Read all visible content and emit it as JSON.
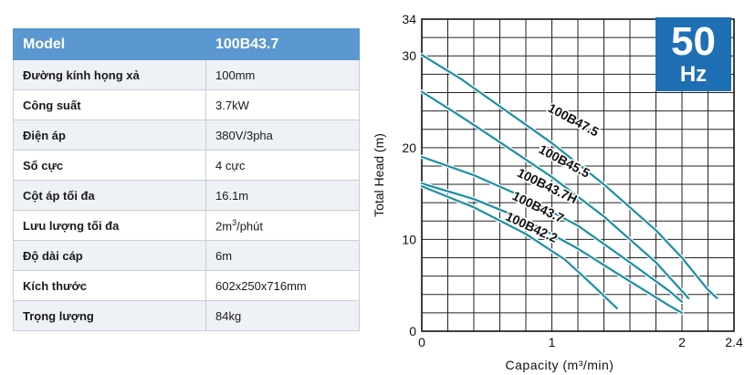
{
  "spec_table": {
    "header": {
      "label": "Model",
      "value": "100B43.7"
    },
    "rows": [
      {
        "label": "Đường kính họng xả",
        "value": "100mm"
      },
      {
        "label": "Công suất",
        "value": "3.7kW"
      },
      {
        "label": "Điện áp",
        "value": "380V/3pha"
      },
      {
        "label": "Số cực",
        "value": "4 cực"
      },
      {
        "label": "Cột áp tối đa",
        "value": "16.1m"
      },
      {
        "label": "Lưu lượng tối đa",
        "value": "2m",
        "value_sup": "3",
        "value_suffix": "/phút"
      },
      {
        "label": "Độ dài cáp",
        "value": "6m"
      },
      {
        "label": "Kích thước",
        "value": "602x250x716mm"
      },
      {
        "label": "Trọng lượng",
        "value": "84kg"
      }
    ]
  },
  "badge": {
    "number": "50",
    "unit": "Hz"
  },
  "chart_data": {
    "type": "line",
    "xlabel": "Capacity (m³/min)",
    "ylabel": "Total Head (m)",
    "xlim": [
      0,
      2.4
    ],
    "ylim": [
      0,
      34
    ],
    "x_ticks": [
      "0",
      "1",
      "2",
      "2.4"
    ],
    "y_ticks": [
      "0",
      "10",
      "20",
      "30",
      "34"
    ],
    "grid": true,
    "line_color": "#1a8fa6",
    "series": [
      {
        "name": "100B47.5",
        "points": [
          [
            0,
            30.1
          ],
          [
            0.3,
            27.5
          ],
          [
            0.6,
            24.5
          ],
          [
            1.0,
            20.5
          ],
          [
            1.4,
            16.0
          ],
          [
            1.8,
            11.0
          ],
          [
            2.0,
            8.0
          ],
          [
            2.2,
            4.5
          ],
          [
            2.27,
            3.6
          ]
        ]
      },
      {
        "name": "100B45.5",
        "points": [
          [
            0,
            26.1
          ],
          [
            0.3,
            23.4
          ],
          [
            0.6,
            20.6
          ],
          [
            1.0,
            16.8
          ],
          [
            1.4,
            12.5
          ],
          [
            1.8,
            7.5
          ],
          [
            2.05,
            3.6
          ]
        ]
      },
      {
        "name": "100B43.7H",
        "points": [
          [
            0,
            19.0
          ],
          [
            0.4,
            17.0
          ],
          [
            0.8,
            14.5
          ],
          [
            1.2,
            11.5
          ],
          [
            1.6,
            7.5
          ],
          [
            1.9,
            4.4
          ],
          [
            2.0,
            3.2
          ]
        ]
      },
      {
        "name": "100B43.7",
        "points": [
          [
            0,
            16.1
          ],
          [
            0.4,
            14.4
          ],
          [
            0.8,
            12.1
          ],
          [
            1.2,
            9.0
          ],
          [
            1.5,
            6.3
          ],
          [
            1.9,
            2.8
          ],
          [
            2.0,
            2.0
          ]
        ]
      },
      {
        "name": "100B42.2",
        "points": [
          [
            0,
            15.8
          ],
          [
            0.4,
            13.5
          ],
          [
            0.8,
            10.6
          ],
          [
            1.1,
            7.8
          ],
          [
            1.3,
            5.2
          ],
          [
            1.5,
            2.5
          ]
        ]
      }
    ],
    "labels": [
      {
        "series": "100B47.5",
        "text": "100B47.5",
        "at": [
          1.15,
          22.6
        ],
        "angle": 28
      },
      {
        "series": "100B45.5",
        "text": "100B45.5",
        "at": [
          1.08,
          18.1
        ],
        "angle": 28
      },
      {
        "series": "100B43.7H",
        "text": "100B43.7H",
        "at": [
          0.95,
          15.4
        ],
        "angle": 26
      },
      {
        "series": "100B43.7",
        "text": "100B43.7",
        "at": [
          0.88,
          13.1
        ],
        "angle": 26
      },
      {
        "series": "100B42.2",
        "text": "100B42.2",
        "at": [
          0.83,
          10.9
        ],
        "angle": 25
      }
    ]
  }
}
